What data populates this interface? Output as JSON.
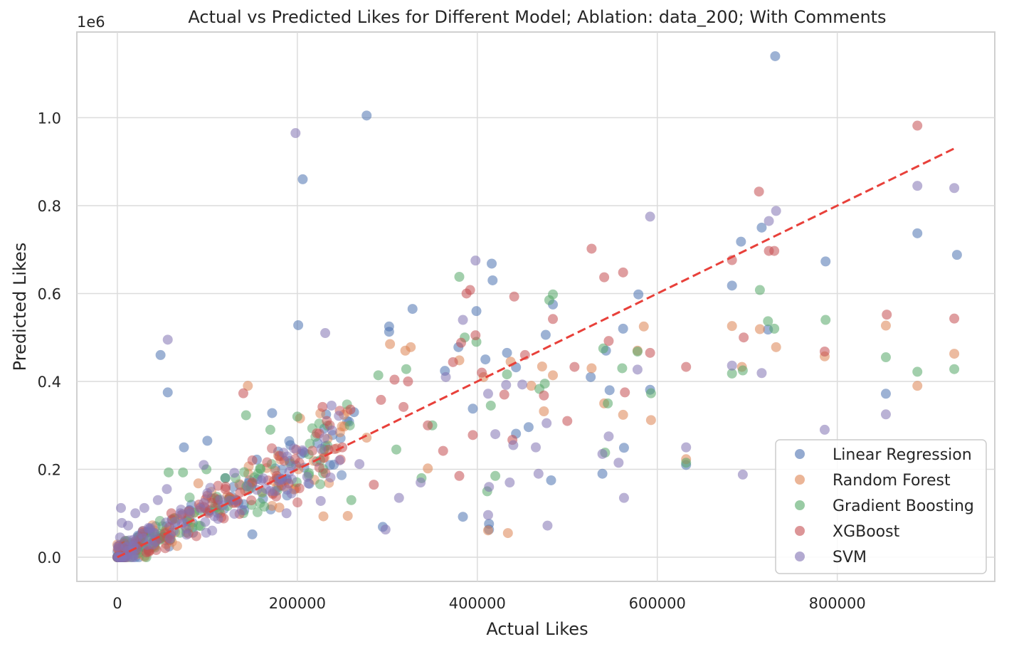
{
  "chart_data": {
    "type": "scatter",
    "title": "Actual vs Predicted Likes for Different Model; Ablation: data_200; With Comments",
    "xlabel": "Actual Likes",
    "ylabel": "Predicted Likes",
    "y_offset_label": "1e6",
    "xlim": [
      -45000,
      975000
    ],
    "ylim": [
      -55000,
      1195000
    ],
    "x_ticks": [
      0,
      200000,
      400000,
      600000,
      800000
    ],
    "x_tick_labels": [
      "0",
      "200000",
      "400000",
      "600000",
      "800000"
    ],
    "y_ticks": [
      0,
      200000,
      400000,
      600000,
      800000,
      1000000
    ],
    "y_tick_labels": [
      "0.0",
      "0.2",
      "0.4",
      "0.6",
      "0.8",
      "1.0"
    ],
    "grid": true,
    "legend_position": "bottom-right",
    "reference_line": {
      "style": "dashed",
      "color": "#e8403a",
      "from": [
        0,
        0
      ],
      "to": [
        930000,
        930000
      ]
    },
    "colors": {
      "Linear Regression": "#4c72b0",
      "Random Forest": "#dd8452",
      "Gradient Boosting": "#55a868",
      "XGBoost": "#c44e52",
      "SVM": "#8172b3"
    },
    "series": [
      {
        "name": "Linear Regression",
        "points": [
          [
            731000,
            1140000
          ],
          [
            277000,
            1005000
          ],
          [
            206000,
            860000
          ],
          [
            201000,
            528000
          ],
          [
            48000,
            460000
          ],
          [
            56000,
            375000
          ],
          [
            328000,
            565000
          ],
          [
            302000,
            525000
          ],
          [
            302000,
            513000
          ],
          [
            416000,
            668000
          ],
          [
            417000,
            630000
          ],
          [
            399000,
            560000
          ],
          [
            379000,
            478000
          ],
          [
            409000,
            450000
          ],
          [
            364000,
            424000
          ],
          [
            395000,
            338000
          ],
          [
            433000,
            465000
          ],
          [
            443000,
            432000
          ],
          [
            476000,
            506000
          ],
          [
            484000,
            575000
          ],
          [
            457000,
            296000
          ],
          [
            443000,
            281000
          ],
          [
            562000,
            520000
          ],
          [
            547000,
            380000
          ],
          [
            543000,
            470000
          ],
          [
            526000,
            410000
          ],
          [
            563000,
            249000
          ],
          [
            539000,
            190000
          ],
          [
            579000,
            598000
          ],
          [
            592000,
            381000
          ],
          [
            632000,
            210000
          ],
          [
            683000,
            618000
          ],
          [
            693000,
            718000
          ],
          [
            716000,
            750000
          ],
          [
            723000,
            518000
          ],
          [
            787000,
            673000
          ],
          [
            889000,
            737000
          ],
          [
            933000,
            688000
          ],
          [
            854000,
            372000
          ],
          [
            172000,
            328000
          ],
          [
            100000,
            265000
          ],
          [
            74000,
            250000
          ],
          [
            232000,
            325000
          ],
          [
            263000,
            330000
          ],
          [
            413000,
            76000
          ],
          [
            413000,
            63000
          ],
          [
            482000,
            175000
          ],
          [
            384000,
            92000
          ],
          [
            155000,
            222000
          ],
          [
            230000,
            293000
          ],
          [
            295000,
            69000
          ],
          [
            120000,
            180000
          ],
          [
            150000,
            52000
          ]
        ]
      },
      {
        "name": "Random Forest",
        "points": [
          [
            145000,
            390000
          ],
          [
            303000,
            485000
          ],
          [
            326000,
            478000
          ],
          [
            407000,
            410000
          ],
          [
            380000,
            448000
          ],
          [
            437000,
            445000
          ],
          [
            472000,
            434000
          ],
          [
            484000,
            414000
          ],
          [
            460000,
            390000
          ],
          [
            474000,
            332000
          ],
          [
            585000,
            525000
          ],
          [
            578000,
            470000
          ],
          [
            593000,
            312000
          ],
          [
            562000,
            324000
          ],
          [
            541000,
            350000
          ],
          [
            527000,
            430000
          ],
          [
            683000,
            526000
          ],
          [
            694000,
            433000
          ],
          [
            714000,
            519000
          ],
          [
            732000,
            478000
          ],
          [
            786000,
            457000
          ],
          [
            854000,
            527000
          ],
          [
            889000,
            390000
          ],
          [
            930000,
            463000
          ],
          [
            256000,
            94000
          ],
          [
            412000,
            61000
          ],
          [
            434000,
            55000
          ],
          [
            632000,
            223000
          ],
          [
            229000,
            93000
          ],
          [
            277000,
            272000
          ],
          [
            203000,
            316000
          ],
          [
            345000,
            202000
          ],
          [
            180000,
            113000
          ],
          [
            90000,
            168000
          ],
          [
            320000,
            470000
          ]
        ]
      },
      {
        "name": "Gradient Boosting",
        "points": [
          [
            380000,
            638000
          ],
          [
            484000,
            598000
          ],
          [
            480000,
            585000
          ],
          [
            399000,
            490000
          ],
          [
            386000,
            500000
          ],
          [
            321000,
            428000
          ],
          [
            290000,
            414000
          ],
          [
            143000,
            323000
          ],
          [
            170000,
            290000
          ],
          [
            73000,
            193000
          ],
          [
            57000,
            193000
          ],
          [
            415000,
            345000
          ],
          [
            433000,
            416000
          ],
          [
            469000,
            383000
          ],
          [
            475000,
            395000
          ],
          [
            540000,
            475000
          ],
          [
            542000,
            238000
          ],
          [
            545000,
            350000
          ],
          [
            561000,
            430000
          ],
          [
            578000,
            468000
          ],
          [
            593000,
            373000
          ],
          [
            632000,
            215000
          ],
          [
            683000,
            418000
          ],
          [
            695000,
            425000
          ],
          [
            714000,
            608000
          ],
          [
            723000,
            537000
          ],
          [
            730000,
            520000
          ],
          [
            787000,
            540000
          ],
          [
            854000,
            455000
          ],
          [
            889000,
            422000
          ],
          [
            930000,
            428000
          ],
          [
            411000,
            150000
          ],
          [
            420000,
            185000
          ],
          [
            338000,
            180000
          ],
          [
            260000,
            130000
          ],
          [
            230000,
            245000
          ],
          [
            200000,
            320000
          ],
          [
            120000,
            180000
          ],
          [
            99000,
            200000
          ],
          [
            350000,
            300000
          ],
          [
            310000,
            245000
          ]
        ]
      },
      {
        "name": "XGBoost",
        "points": [
          [
            527000,
            702000
          ],
          [
            713000,
            832000
          ],
          [
            889000,
            982000
          ],
          [
            724000,
            697000
          ],
          [
            730000,
            697000
          ],
          [
            683000,
            676000
          ],
          [
            562000,
            648000
          ],
          [
            541000,
            637000
          ],
          [
            441000,
            593000
          ],
          [
            484000,
            542000
          ],
          [
            930000,
            543000
          ],
          [
            855000,
            552000
          ],
          [
            696000,
            500000
          ],
          [
            592000,
            465000
          ],
          [
            786000,
            468000
          ],
          [
            632000,
            433000
          ],
          [
            546000,
            492000
          ],
          [
            564000,
            375000
          ],
          [
            388000,
            600000
          ],
          [
            392000,
            608000
          ],
          [
            398000,
            505000
          ],
          [
            382000,
            488000
          ],
          [
            373000,
            444000
          ],
          [
            323000,
            400000
          ],
          [
            308000,
            404000
          ],
          [
            140000,
            373000
          ],
          [
            228000,
            342000
          ],
          [
            259000,
            336000
          ],
          [
            293000,
            358000
          ],
          [
            318000,
            342000
          ],
          [
            345000,
            300000
          ],
          [
            405000,
            420000
          ],
          [
            453000,
            460000
          ],
          [
            474000,
            368000
          ],
          [
            508000,
            433000
          ],
          [
            439000,
            267000
          ],
          [
            395000,
            278000
          ],
          [
            362000,
            242000
          ],
          [
            380000,
            185000
          ],
          [
            430000,
            370000
          ],
          [
            500000,
            310000
          ],
          [
            285000,
            165000
          ],
          [
            250000,
            250000
          ],
          [
            180000,
            230000
          ],
          [
            150000,
            170000
          ],
          [
            120000,
            155000
          ],
          [
            100000,
            140000
          ],
          [
            60000,
            100000
          ]
        ]
      },
      {
        "name": "SVM",
        "points": [
          [
            198000,
            965000
          ],
          [
            56000,
            495000
          ],
          [
            231000,
            510000
          ],
          [
            398000,
            675000
          ],
          [
            592000,
            775000
          ],
          [
            732000,
            788000
          ],
          [
            724000,
            765000
          ],
          [
            889000,
            845000
          ],
          [
            930000,
            840000
          ],
          [
            384000,
            540000
          ],
          [
            365000,
            410000
          ],
          [
            412000,
            372000
          ],
          [
            432000,
            392000
          ],
          [
            450000,
            393000
          ],
          [
            420000,
            280000
          ],
          [
            440000,
            255000
          ],
          [
            465000,
            250000
          ],
          [
            477000,
            305000
          ],
          [
            546000,
            275000
          ],
          [
            539000,
            235000
          ],
          [
            557000,
            215000
          ],
          [
            563000,
            135000
          ],
          [
            578000,
            427000
          ],
          [
            632000,
            250000
          ],
          [
            683000,
            436000
          ],
          [
            695000,
            188000
          ],
          [
            716000,
            419000
          ],
          [
            786000,
            290000
          ],
          [
            854000,
            325000
          ],
          [
            468000,
            190000
          ],
          [
            478000,
            72000
          ],
          [
            413000,
            160000
          ],
          [
            436000,
            170000
          ],
          [
            412000,
            96000
          ],
          [
            337000,
            170000
          ],
          [
            313000,
            135000
          ],
          [
            298000,
            63000
          ],
          [
            269000,
            212000
          ],
          [
            238000,
            345000
          ],
          [
            226000,
            128000
          ],
          [
            211000,
            183000
          ],
          [
            188000,
            100000
          ],
          [
            160000,
            175000
          ],
          [
            130000,
            192000
          ],
          [
            96000,
            210000
          ],
          [
            70000,
            100000
          ],
          [
            45000,
            130000
          ],
          [
            30000,
            112000
          ],
          [
            20000,
            100000
          ],
          [
            12000,
            72000
          ],
          [
            5000,
            78000
          ],
          [
            3000,
            45000
          ],
          [
            4000,
            112000
          ],
          [
            55000,
            155000
          ]
        ]
      }
    ],
    "cluster_summary": {
      "description_points": "dense overlapping points along the diagonal from 0 to 250000 for all series",
      "dense_x_max": 360000
    }
  }
}
